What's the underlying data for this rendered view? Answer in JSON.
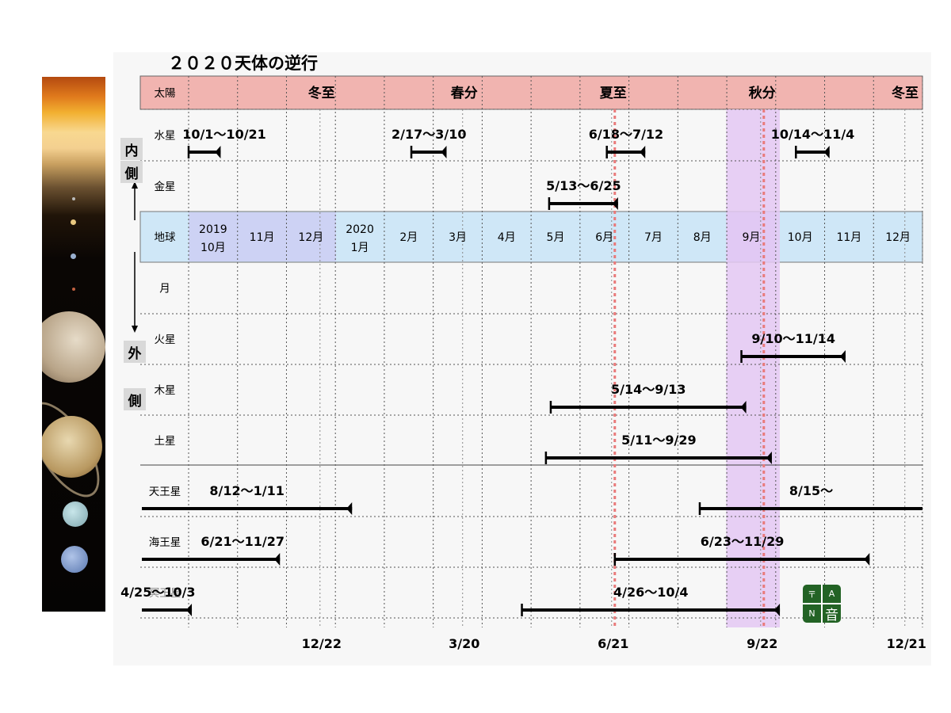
{
  "title": "２０２０天体の逆行",
  "side_labels": {
    "inner_1": "内",
    "inner_2": "側",
    "outer_1": "外",
    "outer_2": "側"
  },
  "logo": {
    "glyph_tl": "〒",
    "glyph_tr": "A",
    "glyph_bl": "N",
    "glyph_br": "音"
  },
  "chart_data": {
    "type": "gantt",
    "colors": {
      "sun_band": "#f1b4b0",
      "earth_band": "#cfe7f7",
      "earth_highlight": "#cdd2f4",
      "season_band": "#e4c8f3",
      "solstice_line": "#e97a7a",
      "bar": "#000000",
      "grid": "#555555"
    },
    "rows": [
      {
        "name": "太陽",
        "band": "sun"
      },
      {
        "name": "水星",
        "periods": [
          {
            "label": "10/1〜10/21",
            "start": "2019-10-01",
            "end": "2019-10-21"
          },
          {
            "label": "2/17〜3/10",
            "start": "2020-02-17",
            "end": "2020-03-10"
          },
          {
            "label": "6/18〜7/12",
            "start": "2020-06-18",
            "end": "2020-07-12"
          },
          {
            "label": "10/14〜11/4",
            "start": "2020-10-14",
            "end": "2020-11-04"
          }
        ]
      },
      {
        "name": "金星",
        "periods": [
          {
            "label": "5/13〜6/25",
            "start": "2020-05-13",
            "end": "2020-06-25"
          }
        ]
      },
      {
        "name": "地球",
        "band": "earth"
      },
      {
        "name": "月",
        "periods": []
      },
      {
        "name": "火星",
        "periods": [
          {
            "label": "9/10〜11/14",
            "start": "2020-09-10",
            "end": "2020-11-14"
          }
        ]
      },
      {
        "name": "木星",
        "periods": [
          {
            "label": "5/14〜9/13",
            "start": "2020-05-14",
            "end": "2020-09-13"
          }
        ]
      },
      {
        "name": "土星",
        "periods": [
          {
            "label": "5/11〜9/29",
            "start": "2020-05-11",
            "end": "2020-09-29"
          }
        ]
      },
      {
        "name": "天王星",
        "periods": [
          {
            "label": "8/12〜1/11",
            "start": "2019-08-12",
            "end": "2020-01-11"
          },
          {
            "label": "8/15〜",
            "start": "2020-08-15",
            "end": "2021-01-14"
          }
        ]
      },
      {
        "name": "海王星",
        "periods": [
          {
            "label": "6/21〜11/27",
            "start": "2019-06-21",
            "end": "2019-11-27"
          },
          {
            "label": "6/23〜11/29",
            "start": "2020-06-23",
            "end": "2020-11-29"
          }
        ]
      },
      {
        "name": "冥王星",
        "periods": [
          {
            "label": "4/25〜10/3",
            "start": "2019-04-25",
            "end": "2019-10-03"
          },
          {
            "label": "4/26〜10/4",
            "start": "2020-04-26",
            "end": "2020-10-04"
          }
        ]
      }
    ],
    "sun_markers": [
      {
        "label": "冬至",
        "date": "2019-12-22"
      },
      {
        "label": "春分",
        "date": "2020-03-20"
      },
      {
        "label": "夏至",
        "date": "2020-06-21"
      },
      {
        "label": "秋分",
        "date": "2020-09-22"
      },
      {
        "label": "冬至",
        "date": "2020-12-21"
      }
    ],
    "months": [
      {
        "line1": "2019",
        "line2": "10月"
      },
      {
        "line1": "11月",
        "line2": ""
      },
      {
        "line1": "12月",
        "line2": ""
      },
      {
        "line1": "2020",
        "line2": "1月"
      },
      {
        "line1": "2月",
        "line2": ""
      },
      {
        "line1": "3月",
        "line2": ""
      },
      {
        "line1": "4月",
        "line2": ""
      },
      {
        "line1": "5月",
        "line2": ""
      },
      {
        "line1": "6月",
        "line2": ""
      },
      {
        "line1": "7月",
        "line2": ""
      },
      {
        "line1": "8月",
        "line2": ""
      },
      {
        "line1": "9月",
        "line2": ""
      },
      {
        "line1": "10月",
        "line2": ""
      },
      {
        "line1": "11月",
        "line2": ""
      },
      {
        "line1": "12月",
        "line2": ""
      }
    ],
    "bottom_ticks": [
      {
        "label": "12/22",
        "date": "2019-12-22"
      },
      {
        "label": "3/20",
        "date": "2020-03-20"
      },
      {
        "label": "6/21",
        "date": "2020-06-21"
      },
      {
        "label": "9/22",
        "date": "2020-09-22"
      },
      {
        "label": "12/21",
        "date": "2020-12-21"
      }
    ],
    "highlight_band": {
      "start": "2020-09-01",
      "end": "2020-10-01"
    },
    "solstice_lines": [
      "2020-06-21",
      "2020-09-22"
    ],
    "earth_highlight_months": [
      "2019-10",
      "2019-11",
      "2019-12",
      "2020-09"
    ],
    "xlim": [
      "2019-10-01",
      "2020-12-31"
    ]
  }
}
